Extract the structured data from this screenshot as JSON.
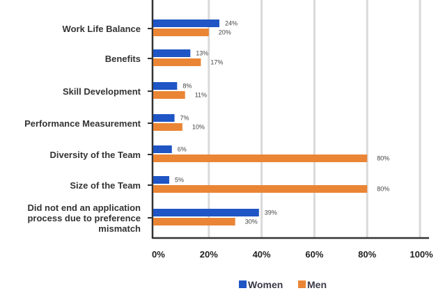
{
  "chart_data": {
    "type": "bar",
    "orientation": "horizontal",
    "categories": [
      "Work Life Balance",
      "Benefits",
      "Skill Development",
      "Performance Measurement",
      "Diversity of the Team",
      "Size of the Team",
      "Did not end an application process due to preference mismatch"
    ],
    "category_lines": [
      [
        "Work Life Balance"
      ],
      [
        "Benefits"
      ],
      [
        "Skill Development"
      ],
      [
        "Performance Measurement"
      ],
      [
        "Diversity of the Team"
      ],
      [
        "Size of the Team"
      ],
      [
        "Did not end an application",
        "process due to preference",
        "mismatch"
      ]
    ],
    "series": [
      {
        "name": "Women",
        "color": "#1f55c4",
        "values": [
          24,
          13,
          8,
          7,
          6,
          5,
          39
        ],
        "labels": [
          "24%",
          "13%",
          "8%",
          "7%",
          "6%",
          "5%",
          "39%"
        ]
      },
      {
        "name": "Men",
        "color": "#ea8535",
        "values": [
          20,
          17,
          11,
          10,
          80,
          80,
          30
        ],
        "labels": [
          "20%",
          "17%",
          "11%",
          "10%",
          "80%",
          "80%",
          "30%"
        ]
      }
    ],
    "xlim": [
      0,
      100
    ],
    "xticks": [
      0,
      20,
      40,
      60,
      80,
      100
    ],
    "xtick_labels": [
      "0%",
      "20%",
      "40%",
      "60%",
      "80%",
      "100%"
    ],
    "grid": true,
    "legend_position": "bottom-center",
    "title": "",
    "xlabel": "",
    "ylabel": ""
  }
}
